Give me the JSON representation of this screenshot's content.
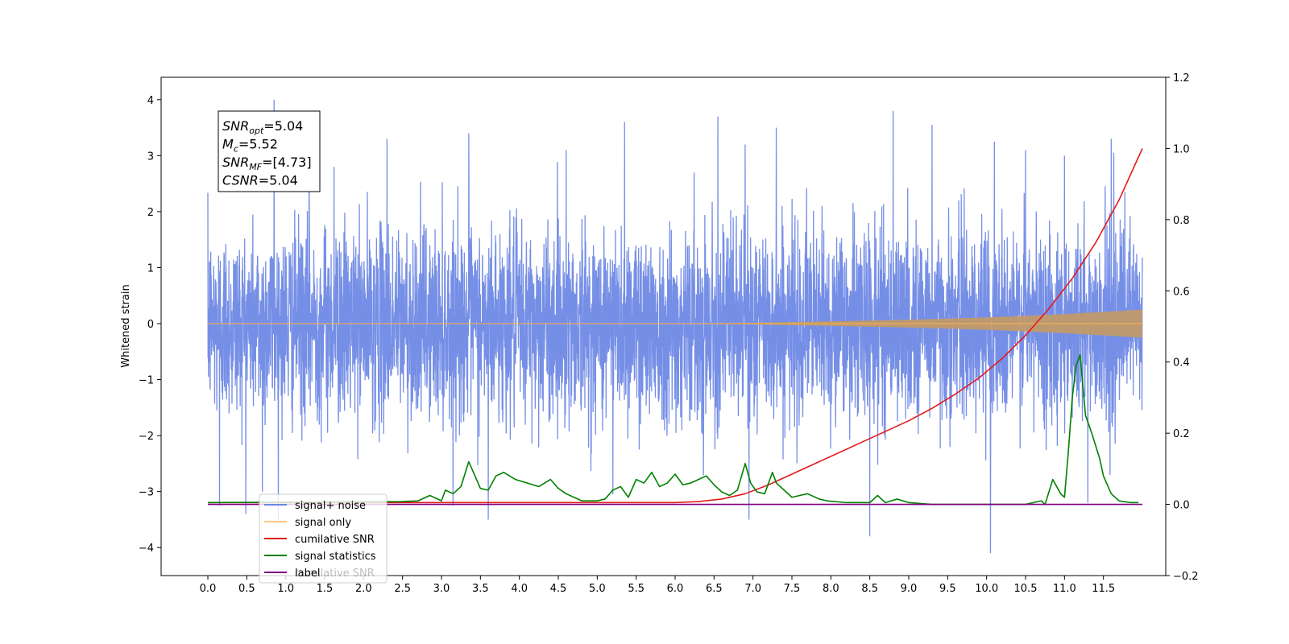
{
  "chart_data": {
    "type": "line",
    "title": "",
    "xlabel": "",
    "ylabel": "Whitened strain",
    "xlim": [
      -0.6,
      12.3
    ],
    "ylim": [
      -4.5,
      4.4
    ],
    "y2lim": [
      -0.2,
      1.2
    ],
    "x_ticks": [
      0.0,
      0.5,
      1.0,
      1.5,
      2.0,
      2.5,
      3.0,
      3.5,
      4.0,
      4.5,
      5.0,
      5.5,
      6.0,
      6.5,
      7.0,
      7.5,
      8.0,
      8.5,
      9.0,
      9.5,
      10.0,
      10.5,
      11.0,
      11.5
    ],
    "x_tick_labels": [
      "0.0",
      "0.5",
      "1.0",
      "1.5",
      "2.0",
      "2.5",
      "3.0",
      "3.5",
      "4.0",
      "4.5",
      "5.0",
      "5.5",
      "6.0",
      "6.5",
      "7.0",
      "7.5",
      "8.0",
      "8.5",
      "9.0",
      "9.5",
      "10.0",
      "10.5",
      "11.0",
      "11.5"
    ],
    "y_ticks": [
      -4,
      -3,
      -2,
      -1,
      0,
      1,
      2,
      3,
      4
    ],
    "y_tick_labels": [
      "−4",
      "−3",
      "−2",
      "−1",
      "0",
      "1",
      "2",
      "3",
      "4"
    ],
    "y2_ticks": [
      -0.2,
      0.0,
      0.2,
      0.4,
      0.6,
      0.8,
      1.0,
      1.2
    ],
    "y2_tick_labels": [
      "−0.2",
      "0.0",
      "0.2",
      "0.4",
      "0.6",
      "0.8",
      "1.0",
      "1.2"
    ],
    "grid": false,
    "legend_position": "lower-left",
    "annotation": {
      "lines": [
        {
          "base": "SNR",
          "sub": "opt",
          "value": "=5.04"
        },
        {
          "base": "M",
          "sub": "c",
          "value": "=5.52"
        },
        {
          "base": "SNR",
          "sub": "MF",
          "value": "=[4.73]"
        },
        {
          "base": "CSNR",
          "sub": "",
          "value": "=5.04"
        }
      ]
    },
    "series": [
      {
        "name": "signal+ noise",
        "axis": "left",
        "color": "#6a86e4",
        "kind": "noise",
        "x_range": [
          0.0,
          12.0
        ],
        "typical_band": [
          -1.6,
          1.6
        ],
        "max_extent": [
          -4.1,
          4.0
        ],
        "spikes": [
          [
            0.85,
            4.0
          ],
          [
            1.3,
            3.2
          ],
          [
            1.62,
            2.8
          ],
          [
            2.3,
            3.3
          ],
          [
            3.35,
            3.4
          ],
          [
            4.6,
            3.1
          ],
          [
            5.35,
            3.6
          ],
          [
            6.55,
            3.7
          ],
          [
            6.9,
            3.2
          ],
          [
            7.3,
            3.5
          ],
          [
            8.8,
            3.8
          ],
          [
            9.3,
            3.55
          ],
          [
            10.1,
            3.25
          ],
          [
            10.5,
            3.1
          ],
          [
            11.0,
            3.0
          ],
          [
            11.6,
            3.3
          ],
          [
            0.15,
            -3.25
          ],
          [
            0.7,
            -3.0
          ],
          [
            3.6,
            -3.5
          ],
          [
            5.2,
            -3.05
          ],
          [
            6.95,
            -3.5
          ],
          [
            8.5,
            -3.8
          ],
          [
            10.05,
            -4.1
          ],
          [
            11.3,
            -3.2
          ]
        ]
      },
      {
        "name": "signal only",
        "axis": "left",
        "color": "#ffb347",
        "kind": "chirp",
        "amplitude": [
          [
            0.0,
            0.0
          ],
          [
            6.0,
            0.0
          ],
          [
            7.0,
            0.015
          ],
          [
            8.0,
            0.04
          ],
          [
            9.0,
            0.07
          ],
          [
            10.0,
            0.11
          ],
          [
            11.0,
            0.17
          ],
          [
            12.0,
            0.25
          ]
        ]
      },
      {
        "name": "cumilative SNR",
        "axis": "right",
        "color": "#e41a1c",
        "x": [
          0.0,
          6.0,
          6.3,
          6.6,
          6.9,
          7.2,
          7.5,
          7.8,
          8.1,
          8.4,
          8.7,
          9.0,
          9.3,
          9.6,
          9.9,
          10.2,
          10.5,
          10.8,
          11.1,
          11.4,
          11.7,
          12.0
        ],
        "values": [
          0.005,
          0.005,
          0.008,
          0.015,
          0.03,
          0.055,
          0.085,
          0.115,
          0.145,
          0.175,
          0.205,
          0.235,
          0.27,
          0.31,
          0.355,
          0.41,
          0.475,
          0.55,
          0.635,
          0.735,
          0.855,
          1.0
        ]
      },
      {
        "name": "signal statistics",
        "axis": "right",
        "color": "#008000",
        "x": [
          0.0,
          2.5,
          2.7,
          2.85,
          3.0,
          3.05,
          3.15,
          3.25,
          3.35,
          3.5,
          3.6,
          3.7,
          3.8,
          3.95,
          4.1,
          4.25,
          4.4,
          4.5,
          4.6,
          4.8,
          5.0,
          5.1,
          5.2,
          5.3,
          5.4,
          5.5,
          5.6,
          5.7,
          5.8,
          5.9,
          6.0,
          6.1,
          6.2,
          6.3,
          6.4,
          6.5,
          6.6,
          6.7,
          6.8,
          6.9,
          6.97,
          7.05,
          7.15,
          7.25,
          7.3,
          7.4,
          7.5,
          7.6,
          7.7,
          7.85,
          7.95,
          8.2,
          8.4,
          8.5,
          8.6,
          8.7,
          8.85,
          9.0,
          9.3,
          9.6,
          10.0,
          10.5,
          10.6,
          10.7,
          10.75,
          10.85,
          10.95,
          11.0,
          11.05,
          11.1,
          11.15,
          11.2,
          11.27,
          11.35,
          11.45,
          11.5,
          11.6,
          11.7,
          11.85,
          11.95
        ],
        "values": [
          0.005,
          0.008,
          0.01,
          0.025,
          0.01,
          0.04,
          0.03,
          0.05,
          0.12,
          0.045,
          0.04,
          0.08,
          0.09,
          0.07,
          0.06,
          0.05,
          0.07,
          0.045,
          0.03,
          0.01,
          0.01,
          0.015,
          0.04,
          0.05,
          0.02,
          0.07,
          0.06,
          0.09,
          0.05,
          0.06,
          0.085,
          0.055,
          0.06,
          0.07,
          0.08,
          0.055,
          0.035,
          0.025,
          0.04,
          0.115,
          0.06,
          0.035,
          0.03,
          0.09,
          0.06,
          0.04,
          0.02,
          0.025,
          0.03,
          0.015,
          0.01,
          0.005,
          0.005,
          0.005,
          0.025,
          0.005,
          0.015,
          0.005,
          0.0,
          0.0,
          0.0,
          0.0,
          0.005,
          0.01,
          0.0,
          0.07,
          0.03,
          0.02,
          0.15,
          0.3,
          0.39,
          0.42,
          0.25,
          0.2,
          0.13,
          0.08,
          0.03,
          0.01,
          0.005,
          0.005
        ]
      },
      {
        "name": "label",
        "axis": "right",
        "color": "#800080",
        "x": [
          0.0,
          12.0
        ],
        "values": [
          0.0,
          0.0
        ]
      }
    ],
    "legend_overlay_text": "cumilative SNR"
  }
}
